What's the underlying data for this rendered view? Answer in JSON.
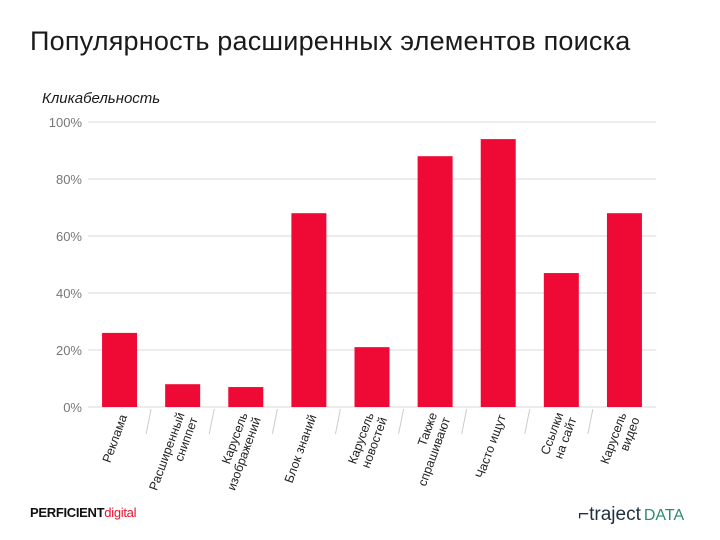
{
  "title": "Популярность расширенных элементов поиска",
  "logos": {
    "left_a": "PERFICIENT",
    "left_b": "digital",
    "right_a": "traject",
    "right_b": "DATA"
  },
  "colors": {
    "bar": "#ef0a35",
    "grid": "#d9d9d9"
  },
  "chart_data": {
    "type": "bar",
    "title": "",
    "xlabel": "",
    "ylabel": "Кликабельность",
    "ylim": [
      0,
      100
    ],
    "yticks": [
      "0%",
      "20%",
      "40%",
      "60%",
      "80%",
      "100%"
    ],
    "grid": true,
    "categories": [
      [
        "Реклама"
      ],
      [
        "Расширенный",
        "сниппет"
      ],
      [
        "Карусель",
        "изображений"
      ],
      [
        "Блок знаний"
      ],
      [
        "Карусель",
        "новостей"
      ],
      [
        "Также",
        "спрашивают"
      ],
      [
        "Часто ищут"
      ],
      [
        "Ссылки",
        "на сайт"
      ],
      [
        "Карусель",
        "видео"
      ]
    ],
    "values": [
      26,
      8,
      7,
      68,
      21,
      88,
      94,
      47,
      68
    ]
  }
}
